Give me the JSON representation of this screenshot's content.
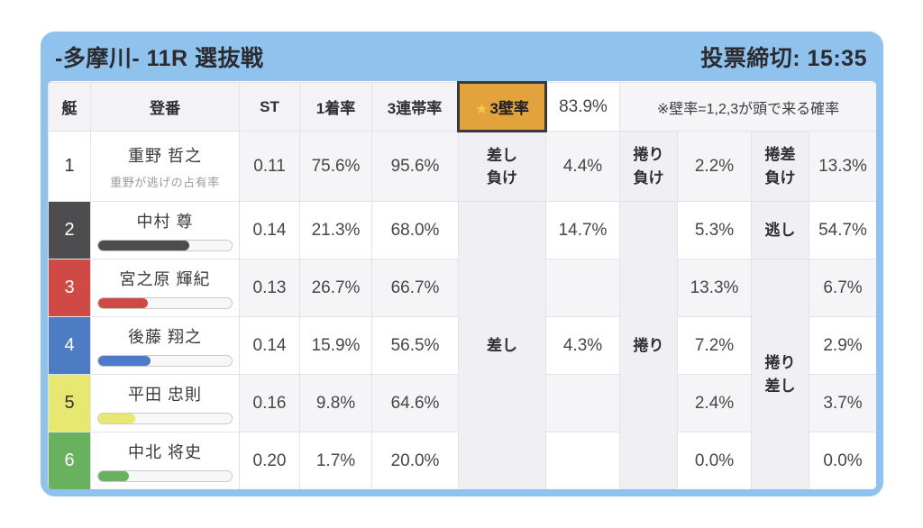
{
  "header": {
    "title": "-多摩川- 11R 選抜戦",
    "deadline": "投票締切: 15:35"
  },
  "columns": {
    "boat": "艇",
    "registration": "登番",
    "st": "ST",
    "win_rate": "1着率",
    "top3_rate": "3連帯率"
  },
  "wall": {
    "star": "★",
    "label": "3壁率",
    "value": "83.9%",
    "note": "※壁率=1,2,3が頭で来る確率"
  },
  "merged_labels": {
    "sashi": "差し",
    "makuri": "捲り",
    "makuri_sashi": "捲り\n差し"
  },
  "rows": [
    {
      "boat": "1",
      "name": "重野 哲之",
      "sub": "重野が逃げの占有率",
      "st": "0.11",
      "win_rate": "75.6%",
      "top3_rate": "95.6%",
      "sashi_label": "差し\n負け",
      "sashi_value": "4.4%",
      "makuri_label": "捲り\n負け",
      "makuri_value": "2.2%",
      "third_label": "捲差\n負け",
      "third_value": "13.3%"
    },
    {
      "boat": "2",
      "name": "中村 尊",
      "st": "0.14",
      "win_rate": "21.3%",
      "top3_rate": "68.0%",
      "bar_pct": 68,
      "sashi_value": "14.7%",
      "makuri_value": "5.3%",
      "third_label": "逃し",
      "third_value": "54.7%"
    },
    {
      "boat": "3",
      "name": "宮之原 輝紀",
      "st": "0.13",
      "win_rate": "26.7%",
      "top3_rate": "66.7%",
      "bar_pct": 37,
      "sashi_value": "",
      "makuri_value": "13.3%",
      "third_value": "6.7%"
    },
    {
      "boat": "4",
      "name": "後藤 翔之",
      "st": "0.14",
      "win_rate": "15.9%",
      "top3_rate": "56.5%",
      "bar_pct": 39,
      "sashi_value": "4.3%",
      "makuri_value": "7.2%",
      "third_value": "2.9%"
    },
    {
      "boat": "5",
      "name": "平田 忠則",
      "st": "0.16",
      "win_rate": "9.8%",
      "top3_rate": "64.6%",
      "bar_pct": 28,
      "sashi_value": "",
      "makuri_value": "2.4%",
      "third_value": "3.7%"
    },
    {
      "boat": "6",
      "name": "中北 将史",
      "st": "0.20",
      "win_rate": "1.7%",
      "top3_rate": "20.0%",
      "bar_pct": 23,
      "sashi_value": "",
      "makuri_value": "0.0%",
      "third_value": "0.0%"
    }
  ],
  "colors": {
    "card_blue": "#8fc3ee",
    "highlight_orange": "#e2a33c",
    "highlight_border": "#3a3a3e",
    "star_yellow": "#f2cb45",
    "boat1_bg": "#ffffff",
    "boat1_text": "#333333",
    "boat2_bg": "#4d4d4f",
    "boat2_text": "#ffffff",
    "boat3_bg": "#cf4a45",
    "boat3_text": "#ffffff",
    "boat4_bg": "#4d7bc4",
    "boat4_text": "#ffffff",
    "boat5_bg": "#e7e871",
    "boat5_text": "#333333",
    "boat6_bg": "#68b15f",
    "boat6_text": "#ffffff"
  }
}
